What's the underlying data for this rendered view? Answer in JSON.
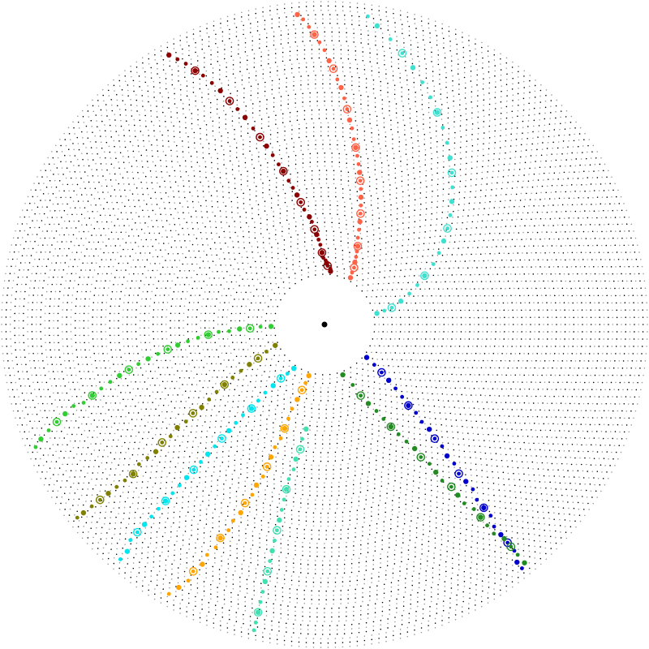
{
  "chart_data": {
    "type": "radial-scatter",
    "title": "",
    "r_range": [
      0,
      100
    ],
    "rings": {
      "count": 64,
      "style": "dotted",
      "colors": [
        "#000000",
        "#9a9a9a"
      ],
      "note_visible": false
    },
    "center_marker": {
      "color": "#000000"
    },
    "series": [
      {
        "color": "#8b0000",
        "points": [
          [
            83.5,
            0
          ],
          [
            84,
            1
          ],
          [
            87,
            2
          ],
          [
            88,
            3
          ],
          [
            89,
            4
          ],
          [
            91,
            5
          ],
          [
            92,
            7
          ],
          [
            93,
            10
          ],
          [
            94,
            12
          ],
          [
            95,
            14
          ],
          [
            96,
            16
          ],
          [
            97,
            19
          ],
          [
            98,
            21
          ],
          [
            100,
            24
          ],
          [
            101,
            27
          ],
          [
            102,
            30
          ],
          [
            103,
            33
          ],
          [
            104,
            36
          ],
          [
            105,
            40
          ],
          [
            106,
            43
          ],
          [
            107,
            47
          ],
          [
            108,
            51
          ],
          [
            109,
            55
          ],
          [
            110,
            59
          ],
          [
            111,
            64
          ],
          [
            112,
            68
          ],
          [
            113,
            72
          ],
          [
            114,
            77
          ],
          [
            115,
            81
          ],
          [
            116,
            85
          ],
          [
            117,
            88
          ],
          [
            118,
            92
          ],
          [
            119,
            95
          ],
          [
            120,
            98
          ]
        ]
      },
      {
        "color": "#ff6347",
        "points": [
          [
            61,
            0
          ],
          [
            62,
            2
          ],
          [
            62.5,
            4
          ],
          [
            64,
            6
          ],
          [
            65,
            8
          ],
          [
            66,
            10
          ],
          [
            67,
            12
          ],
          [
            69,
            15
          ],
          [
            70,
            18
          ],
          [
            71,
            21
          ],
          [
            72,
            24
          ],
          [
            73,
            27
          ],
          [
            74,
            30
          ],
          [
            75,
            33
          ],
          [
            76,
            36
          ],
          [
            77,
            39
          ],
          [
            78,
            42
          ],
          [
            79,
            45
          ],
          [
            80,
            48
          ],
          [
            81,
            51
          ],
          [
            82,
            55
          ],
          [
            83,
            58
          ],
          [
            84,
            62
          ],
          [
            85,
            66
          ],
          [
            86,
            70
          ],
          [
            87,
            73
          ],
          [
            88,
            77
          ],
          [
            89,
            80
          ],
          [
            90,
            84
          ],
          [
            91,
            87
          ],
          [
            92,
            90
          ],
          [
            93,
            93
          ],
          [
            94,
            96
          ],
          [
            95,
            98
          ]
        ]
      },
      {
        "color": "#40e0d0",
        "points": [
          [
            12,
            0
          ],
          [
            13,
            3
          ],
          [
            14,
            6
          ],
          [
            17,
            10
          ],
          [
            20,
            14
          ],
          [
            23,
            18
          ],
          [
            26,
            22
          ],
          [
            29,
            27
          ],
          [
            32,
            31
          ],
          [
            35,
            35
          ],
          [
            38,
            39
          ],
          [
            41,
            43
          ],
          [
            44,
            47
          ],
          [
            47,
            51
          ],
          [
            50,
            55
          ],
          [
            53,
            59
          ],
          [
            56,
            63
          ],
          [
            59,
            67
          ],
          [
            62,
            71
          ],
          [
            65,
            75
          ],
          [
            68,
            79
          ],
          [
            71,
            83
          ],
          [
            74,
            87
          ],
          [
            77,
            91
          ],
          [
            80,
            95
          ],
          [
            82,
            98
          ]
        ]
      },
      {
        "color": "#0000cd",
        "points": [
          [
            -38,
            0
          ],
          [
            -39,
            4
          ],
          [
            -40,
            8
          ],
          [
            -41,
            12
          ],
          [
            -42,
            16
          ],
          [
            -43,
            20
          ],
          [
            -44,
            24
          ],
          [
            -44,
            28
          ],
          [
            -45,
            32
          ],
          [
            -45,
            36
          ],
          [
            -46,
            40
          ],
          [
            -46,
            44
          ],
          [
            -47,
            48
          ],
          [
            -47,
            52
          ],
          [
            -48,
            56
          ],
          [
            -48,
            60
          ],
          [
            -48,
            64
          ],
          [
            -49,
            68
          ],
          [
            -49,
            72
          ],
          [
            -49,
            76
          ],
          [
            -50,
            80
          ],
          [
            -50,
            84
          ],
          [
            -50,
            88
          ],
          [
            -50,
            92
          ],
          [
            -51,
            96
          ],
          [
            -51,
            99
          ]
        ]
      },
      {
        "color": "#228b22",
        "points": [
          [
            -70,
            0
          ],
          [
            -65,
            5
          ],
          [
            -63,
            10
          ],
          [
            -61,
            14
          ],
          [
            -59,
            18
          ],
          [
            -58,
            22
          ],
          [
            -57,
            26
          ],
          [
            -56,
            30
          ],
          [
            -55,
            34
          ],
          [
            -54,
            38
          ],
          [
            -54,
            42
          ],
          [
            -53,
            46
          ],
          [
            -53,
            50
          ],
          [
            -53,
            54
          ],
          [
            -52,
            58
          ],
          [
            -52,
            62
          ],
          [
            -52,
            66
          ],
          [
            -51,
            70
          ],
          [
            -51,
            74
          ],
          [
            -51,
            78
          ],
          [
            -51,
            82
          ],
          [
            -50,
            86
          ],
          [
            -50,
            90
          ],
          [
            -50,
            94
          ],
          [
            -50,
            98
          ]
        ]
      },
      {
        "color": "#ffa500",
        "points": [
          [
            -107,
            0
          ],
          [
            -108,
            3
          ],
          [
            -109,
            6
          ],
          [
            -110,
            10
          ],
          [
            -111,
            14
          ],
          [
            -111,
            18
          ],
          [
            -111,
            22
          ],
          [
            -111,
            26
          ],
          [
            -112,
            30
          ],
          [
            -112,
            34
          ],
          [
            -112,
            38
          ],
          [
            -112,
            42
          ],
          [
            -113,
            46
          ],
          [
            -113,
            50
          ],
          [
            -114,
            54
          ],
          [
            -114,
            58
          ],
          [
            -115,
            62
          ],
          [
            -115,
            66
          ],
          [
            -116,
            70
          ],
          [
            -116,
            74
          ],
          [
            -117,
            78
          ],
          [
            -117,
            82
          ],
          [
            -118,
            86
          ],
          [
            -118,
            90
          ],
          [
            -119,
            94
          ],
          [
            -120,
            98
          ]
        ]
      },
      {
        "color": "#40e0b0",
        "points": [
          [
            -100,
            20
          ],
          [
            -101,
            24
          ],
          [
            -101,
            28
          ],
          [
            -102,
            32
          ],
          [
            -102,
            36
          ],
          [
            -103,
            40
          ],
          [
            -103,
            44
          ],
          [
            -103,
            48
          ],
          [
            -103,
            52
          ],
          [
            -103,
            56
          ],
          [
            -103,
            60
          ],
          [
            -103,
            64
          ],
          [
            -103,
            68
          ],
          [
            -103,
            72
          ],
          [
            -103,
            76
          ],
          [
            -103,
            80
          ],
          [
            -103,
            84
          ],
          [
            -103,
            88
          ],
          [
            -103,
            92
          ],
          [
            -103,
            96
          ],
          [
            -103,
            99
          ]
        ]
      },
      {
        "color": "#00e5ee",
        "points": [
          [
            -125,
            0
          ],
          [
            -127,
            3
          ],
          [
            -129,
            6
          ],
          [
            -130,
            10
          ],
          [
            -131,
            14
          ],
          [
            -131,
            18
          ],
          [
            -131,
            22
          ],
          [
            -132,
            26
          ],
          [
            -132,
            30
          ],
          [
            -132,
            34
          ],
          [
            -132,
            38
          ],
          [
            -132,
            42
          ],
          [
            -132,
            46
          ],
          [
            -132,
            50
          ],
          [
            -132,
            54
          ],
          [
            -132,
            58
          ],
          [
            -132,
            62
          ],
          [
            -132,
            66
          ],
          [
            -132,
            70
          ],
          [
            -132,
            74
          ],
          [
            -132,
            78
          ],
          [
            -132,
            82
          ],
          [
            -132,
            86
          ],
          [
            -132,
            90
          ],
          [
            -131,
            94
          ],
          [
            -131,
            98
          ]
        ]
      },
      {
        "color": "#808000",
        "points": [
          [
            -157,
            0
          ],
          [
            -155,
            4
          ],
          [
            -153,
            8
          ],
          [
            -152,
            12
          ],
          [
            -151,
            16
          ],
          [
            -150,
            20
          ],
          [
            -149,
            24
          ],
          [
            -148,
            28
          ],
          [
            -147,
            32
          ],
          [
            -146,
            36
          ],
          [
            -146,
            40
          ],
          [
            -145,
            44
          ],
          [
            -145,
            48
          ],
          [
            -144,
            52
          ],
          [
            -144,
            56
          ],
          [
            -143,
            60
          ],
          [
            -143,
            64
          ],
          [
            -143,
            68
          ],
          [
            -142,
            72
          ],
          [
            -142,
            76
          ],
          [
            -142,
            80
          ],
          [
            -142,
            84
          ],
          [
            -142,
            88
          ],
          [
            -142,
            92
          ],
          [
            -142,
            96
          ],
          [
            -142,
            99
          ]
        ]
      },
      {
        "color": "#32cd32",
        "points": [
          [
            -178,
            0
          ],
          [
            -178,
            4
          ],
          [
            -177,
            8
          ],
          [
            -177,
            12
          ],
          [
            -176,
            16
          ],
          [
            -176,
            20
          ],
          [
            -175,
            24
          ],
          [
            -174,
            28
          ],
          [
            -173,
            32
          ],
          [
            -172,
            36
          ],
          [
            -171,
            40
          ],
          [
            -170,
            44
          ],
          [
            -169,
            48
          ],
          [
            -168,
            52
          ],
          [
            -167,
            56
          ],
          [
            -166,
            60
          ],
          [
            -165,
            64
          ],
          [
            -164,
            68
          ],
          [
            -163,
            72
          ],
          [
            -162,
            76
          ],
          [
            -162,
            80
          ],
          [
            -161,
            84
          ],
          [
            -160,
            88
          ],
          [
            -159,
            92
          ],
          [
            -158,
            96
          ],
          [
            -157,
            99
          ]
        ]
      }
    ]
  }
}
